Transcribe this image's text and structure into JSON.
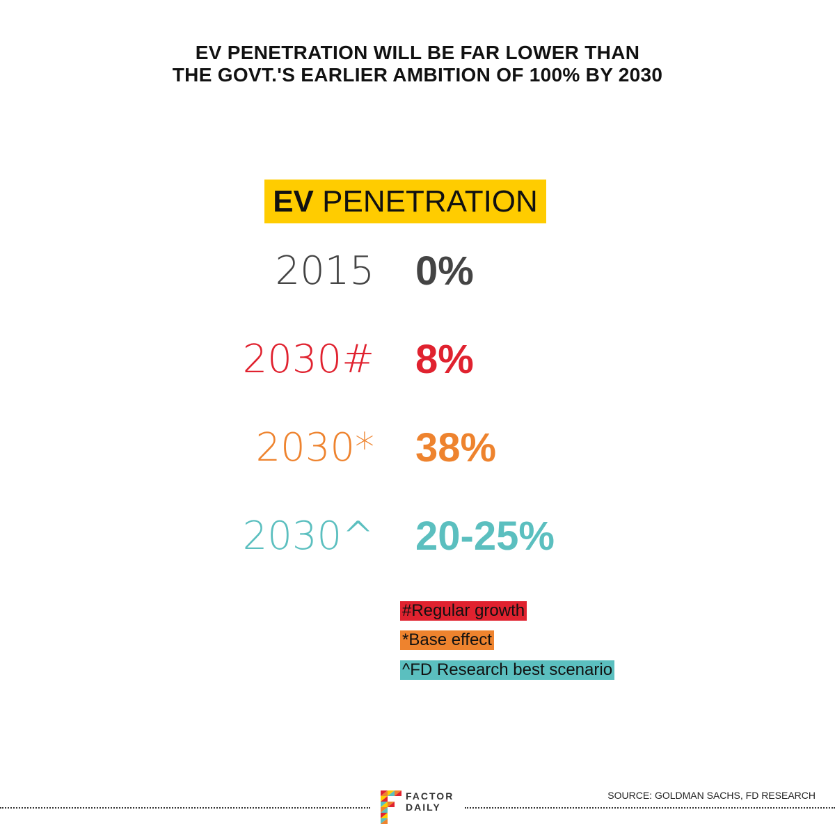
{
  "headline": {
    "line1": "EV PENETRATION WILL BE FAR LOWER THAN",
    "line2": "THE GOVT.'S EARLIER AMBITION OF 100% BY 2030"
  },
  "section_title": {
    "bold": "EV",
    "light": "PENETRATION"
  },
  "chart_data": {
    "type": "table",
    "title": "EV PENETRATION",
    "rows": [
      {
        "label": "2015",
        "value": "0%",
        "color": "#444444"
      },
      {
        "label": "2030#",
        "value": "8%",
        "color": "#e0222f"
      },
      {
        "label": "2030*",
        "value": "38%",
        "color": "#ee832e"
      },
      {
        "label": "2030^",
        "value": "20-25%",
        "color": "#5bbfbf"
      }
    ],
    "legend": [
      {
        "text": "#Regular growth",
        "color": "#e0222f"
      },
      {
        "text": "*Base effect",
        "color": "#ee832e"
      },
      {
        "text": "^FD Research best scenario",
        "color": "#5bbfbf"
      }
    ]
  },
  "colors": {
    "title_highlight": "#ffcc00"
  },
  "footer": {
    "logo_line1": "FACTOR",
    "logo_line2": "DAILY",
    "source": "SOURCE: GOLDMAN SACHS, FD RESEARCH"
  }
}
